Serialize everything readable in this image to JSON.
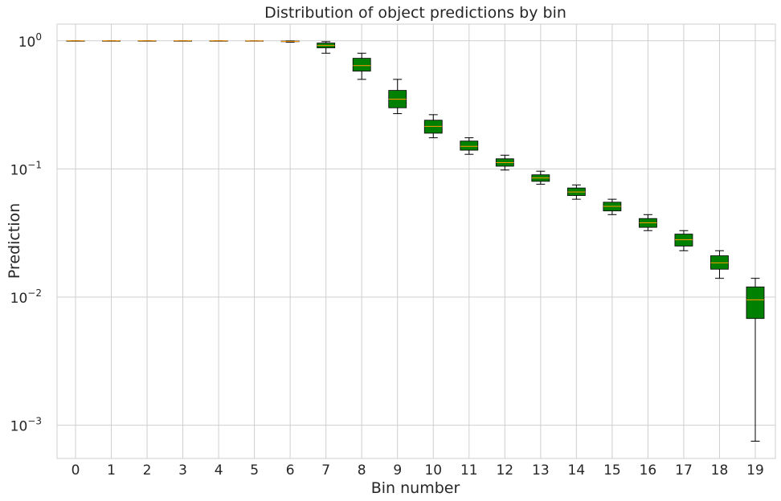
{
  "chart_data": {
    "type": "box",
    "title": "Distribution of object predictions by bin",
    "xlabel": "Bin number",
    "ylabel": "Prediction",
    "yscale": "log",
    "ylim": [
      0.00055,
      1.35
    ],
    "yticks": [
      {
        "value": 1,
        "base": "10",
        "exp": "0"
      },
      {
        "value": 0.1,
        "base": "10",
        "exp": "−1"
      },
      {
        "value": 0.01,
        "base": "10",
        "exp": "−2"
      },
      {
        "value": 0.001,
        "base": "10",
        "exp": "−3"
      }
    ],
    "grid": true,
    "box_color": "#008000",
    "median_color": "#ff9900",
    "categories": [
      "0",
      "1",
      "2",
      "3",
      "4",
      "5",
      "6",
      "7",
      "8",
      "9",
      "10",
      "11",
      "12",
      "13",
      "14",
      "15",
      "16",
      "17",
      "18",
      "19"
    ],
    "boxes": [
      {
        "bin": "0",
        "whislo": 1.0,
        "q1": 1.0,
        "med": 1.0,
        "q3": 1.0,
        "whishi": 1.0
      },
      {
        "bin": "1",
        "whislo": 1.0,
        "q1": 1.0,
        "med": 1.0,
        "q3": 1.0,
        "whishi": 1.0
      },
      {
        "bin": "2",
        "whislo": 1.0,
        "q1": 1.0,
        "med": 1.0,
        "q3": 1.0,
        "whishi": 1.0
      },
      {
        "bin": "3",
        "whislo": 1.0,
        "q1": 1.0,
        "med": 1.0,
        "q3": 1.0,
        "whishi": 1.0
      },
      {
        "bin": "4",
        "whislo": 1.0,
        "q1": 1.0,
        "med": 1.0,
        "q3": 1.0,
        "whishi": 1.0
      },
      {
        "bin": "5",
        "whislo": 0.997,
        "q1": 0.998,
        "med": 0.999,
        "q3": 1.0,
        "whishi": 1.0
      },
      {
        "bin": "6",
        "whislo": 0.975,
        "q1": 0.985,
        "med": 0.99,
        "q3": 0.995,
        "whishi": 0.998
      },
      {
        "bin": "7",
        "whislo": 0.8,
        "q1": 0.88,
        "med": 0.92,
        "q3": 0.96,
        "whishi": 0.985
      },
      {
        "bin": "8",
        "whislo": 0.5,
        "q1": 0.58,
        "med": 0.64,
        "q3": 0.73,
        "whishi": 0.8
      },
      {
        "bin": "9",
        "whislo": 0.27,
        "q1": 0.3,
        "med": 0.35,
        "q3": 0.41,
        "whishi": 0.5
      },
      {
        "bin": "10",
        "whislo": 0.175,
        "q1": 0.19,
        "med": 0.215,
        "q3": 0.24,
        "whishi": 0.265
      },
      {
        "bin": "11",
        "whislo": 0.13,
        "q1": 0.14,
        "med": 0.15,
        "q3": 0.165,
        "whishi": 0.175
      },
      {
        "bin": "12",
        "whislo": 0.098,
        "q1": 0.105,
        "med": 0.112,
        "q3": 0.12,
        "whishi": 0.128
      },
      {
        "bin": "13",
        "whislo": 0.076,
        "q1": 0.08,
        "med": 0.085,
        "q3": 0.09,
        "whishi": 0.096
      },
      {
        "bin": "14",
        "whislo": 0.058,
        "q1": 0.062,
        "med": 0.066,
        "q3": 0.071,
        "whishi": 0.075
      },
      {
        "bin": "15",
        "whislo": 0.044,
        "q1": 0.047,
        "med": 0.051,
        "q3": 0.055,
        "whishi": 0.058
      },
      {
        "bin": "16",
        "whislo": 0.033,
        "q1": 0.035,
        "med": 0.038,
        "q3": 0.041,
        "whishi": 0.044
      },
      {
        "bin": "17",
        "whislo": 0.023,
        "q1": 0.025,
        "med": 0.028,
        "q3": 0.031,
        "whishi": 0.033
      },
      {
        "bin": "18",
        "whislo": 0.014,
        "q1": 0.0165,
        "med": 0.0185,
        "q3": 0.021,
        "whishi": 0.023
      },
      {
        "bin": "19",
        "whislo": 0.00075,
        "q1": 0.0068,
        "med": 0.0095,
        "q3": 0.012,
        "whishi": 0.014
      }
    ]
  }
}
